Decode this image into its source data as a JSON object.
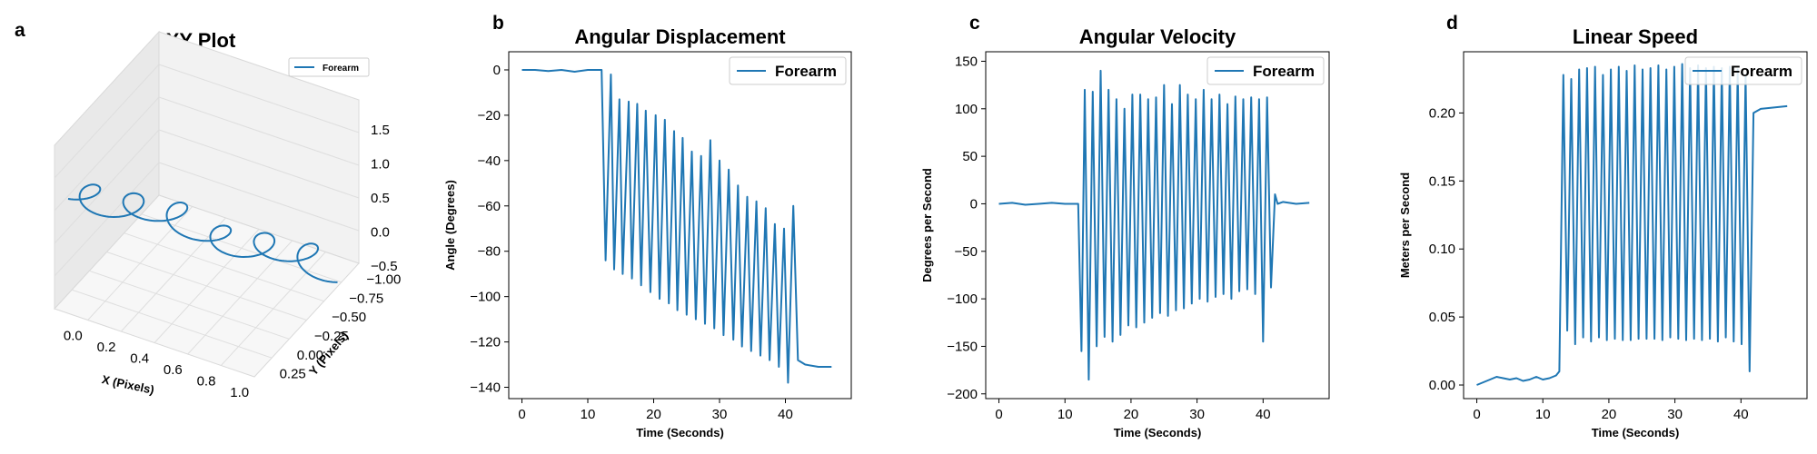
{
  "colors": {
    "series": "#1f77b4"
  },
  "chart_data": [
    {
      "panel": "a",
      "type": "line",
      "projection": "3d",
      "title": "XY Plot",
      "xlabel": "X (Pixels)",
      "ylabel": "Y (Pixels)",
      "zlabel": "",
      "xlim": [
        -0.1,
        1.0
      ],
      "ylim": [
        -1.0,
        0.3
      ],
      "zlim": [
        -0.5,
        1.5
      ],
      "x_ticks": [
        "0.0",
        "0.2",
        "0.4",
        "0.6",
        "0.8",
        "1.0"
      ],
      "y_ticks": [
        "-1.00",
        "-0.75",
        "-0.50",
        "-0.25",
        "0.00",
        "0.25"
      ],
      "z_ticks": [
        "-0.5",
        "0.0",
        "0.5",
        "1.0",
        "1.5"
      ],
      "legend": {
        "position": "upper-right",
        "entries": [
          "Forearm"
        ]
      },
      "series": [
        {
          "name": "Forearm",
          "x_range": [
            0.0,
            1.0
          ],
          "y_range": [
            -0.3,
            0.25
          ],
          "z_range": [
            -0.5,
            0.5
          ],
          "description_points": 40
        }
      ]
    },
    {
      "panel": "b",
      "type": "line",
      "title": "Angular Displacement",
      "xlabel": "Time (Seconds)",
      "ylabel": "Angle (Degrees)",
      "xlim": [
        -2,
        50
      ],
      "ylim": [
        -145,
        8
      ],
      "x_ticks": [
        0,
        10,
        20,
        30,
        40
      ],
      "y_ticks": [
        0,
        -20,
        -40,
        -60,
        -80,
        -100,
        -120,
        -140
      ],
      "legend": {
        "position": "upper-right",
        "entries": [
          "Forearm"
        ]
      },
      "series": [
        {
          "name": "Forearm",
          "x": [
            0,
            2,
            4,
            6,
            8,
            10,
            12.1,
            12.7,
            13.5,
            14.0,
            14.8,
            15.3,
            16.2,
            16.7,
            17.5,
            18.1,
            18.8,
            19.5,
            20.3,
            20.9,
            21.7,
            22.3,
            23.1,
            23.6,
            24.4,
            25.0,
            25.8,
            26.4,
            27.2,
            27.8,
            28.6,
            29.2,
            30.0,
            30.6,
            31.4,
            32.1,
            32.8,
            33.4,
            34.2,
            34.8,
            35.6,
            36.2,
            37.0,
            37.6,
            38.4,
            39.0,
            39.8,
            40.4,
            41.2,
            41.9,
            43,
            45,
            47
          ],
          "y": [
            0,
            0,
            -0.5,
            0,
            -0.8,
            0,
            0,
            -84,
            -2,
            -88,
            -13,
            -90,
            -14,
            -92,
            -15,
            -95,
            -18,
            -98,
            -20,
            -101,
            -22,
            -103,
            -27,
            -106,
            -30,
            -108,
            -36,
            -110,
            -38,
            -112,
            -31,
            -114,
            -40,
            -117,
            -44,
            -119,
            -51,
            -122,
            -56,
            -124,
            -58,
            -126,
            -61,
            -128,
            -68,
            -131,
            -70,
            -138,
            -60,
            -128,
            -130,
            -131,
            -131
          ]
        }
      ]
    },
    {
      "panel": "c",
      "type": "line",
      "title": "Angular Velocity",
      "xlabel": "Time (Seconds)",
      "ylabel": "Degrees per Second",
      "xlim": [
        -2,
        50
      ],
      "ylim": [
        -205,
        160
      ],
      "x_ticks": [
        0,
        10,
        20,
        30,
        40
      ],
      "y_ticks": [
        150,
        100,
        50,
        0,
        -50,
        -100,
        -150,
        -200
      ],
      "legend": {
        "position": "upper-right",
        "entries": [
          "Forearm"
        ]
      },
      "series": [
        {
          "name": "Forearm",
          "x": [
            0,
            2,
            4,
            6,
            8,
            10,
            12.0,
            12.5,
            13.0,
            13.6,
            14.2,
            14.8,
            15.4,
            16.0,
            16.6,
            17.2,
            17.8,
            18.4,
            19.0,
            19.6,
            20.2,
            20.8,
            21.4,
            22.0,
            22.6,
            23.2,
            23.8,
            24.4,
            25.0,
            25.6,
            26.2,
            26.8,
            27.4,
            28.0,
            28.6,
            29.2,
            29.8,
            30.4,
            31.0,
            31.6,
            32.2,
            32.8,
            33.4,
            34.0,
            34.6,
            35.2,
            35.8,
            36.4,
            37.0,
            37.6,
            38.2,
            38.8,
            39.4,
            40.0,
            40.6,
            41.2,
            41.8,
            42.2,
            43,
            45,
            47
          ],
          "y": [
            0,
            1,
            -1,
            0,
            1,
            0,
            0,
            -155,
            120,
            -185,
            118,
            -150,
            140,
            -140,
            120,
            -145,
            110,
            -138,
            100,
            -128,
            115,
            -130,
            115,
            -125,
            110,
            -120,
            112,
            -115,
            125,
            -118,
            105,
            -112,
            125,
            -110,
            115,
            -105,
            110,
            -100,
            120,
            -103,
            110,
            -98,
            115,
            -95,
            105,
            -100,
            113,
            -92,
            110,
            -90,
            112,
            -95,
            110,
            -145,
            112,
            -88,
            10,
            0,
            2,
            0,
            1
          ]
        }
      ]
    },
    {
      "panel": "d",
      "type": "line",
      "title": "Linear Speed",
      "xlabel": "Time (Seconds)",
      "ylabel": "Meters per Second",
      "xlim": [
        -2,
        50
      ],
      "ylim": [
        -0.01,
        0.245
      ],
      "x_ticks": [
        0,
        10,
        20,
        30,
        40
      ],
      "y_ticks": [
        "0.00",
        "0.05",
        "0.10",
        "0.15",
        "0.20"
      ],
      "legend": {
        "position": "upper-right",
        "entries": [
          "Forearm"
        ]
      },
      "series": [
        {
          "name": "Forearm",
          "x": [
            0,
            1,
            2,
            3,
            4,
            5,
            6,
            7,
            8,
            9,
            10,
            11,
            12.0,
            12.5,
            13.1,
            13.7,
            14.3,
            14.9,
            15.5,
            16.1,
            16.7,
            17.3,
            17.9,
            18.5,
            19.1,
            19.7,
            20.3,
            20.9,
            21.5,
            22.1,
            22.7,
            23.3,
            23.9,
            24.5,
            25.1,
            25.7,
            26.3,
            26.9,
            27.5,
            28.1,
            28.7,
            29.3,
            29.9,
            30.5,
            31.1,
            31.7,
            32.3,
            32.9,
            33.5,
            34.1,
            34.7,
            35.3,
            35.9,
            36.5,
            37.1,
            37.7,
            38.3,
            38.9,
            39.5,
            40.1,
            40.7,
            41.3,
            41.9,
            43,
            45,
            47
          ],
          "y": [
            0.0,
            0.002,
            0.004,
            0.006,
            0.005,
            0.004,
            0.005,
            0.003,
            0.004,
            0.006,
            0.004,
            0.005,
            0.007,
            0.01,
            0.228,
            0.04,
            0.225,
            0.03,
            0.232,
            0.035,
            0.233,
            0.032,
            0.234,
            0.035,
            0.228,
            0.033,
            0.232,
            0.034,
            0.234,
            0.033,
            0.231,
            0.033,
            0.235,
            0.034,
            0.232,
            0.034,
            0.233,
            0.034,
            0.235,
            0.033,
            0.232,
            0.035,
            0.234,
            0.034,
            0.236,
            0.033,
            0.233,
            0.034,
            0.235,
            0.033,
            0.233,
            0.034,
            0.234,
            0.032,
            0.233,
            0.035,
            0.234,
            0.032,
            0.232,
            0.03,
            0.228,
            0.01,
            0.2,
            0.203,
            0.204,
            0.205
          ]
        }
      ]
    }
  ]
}
